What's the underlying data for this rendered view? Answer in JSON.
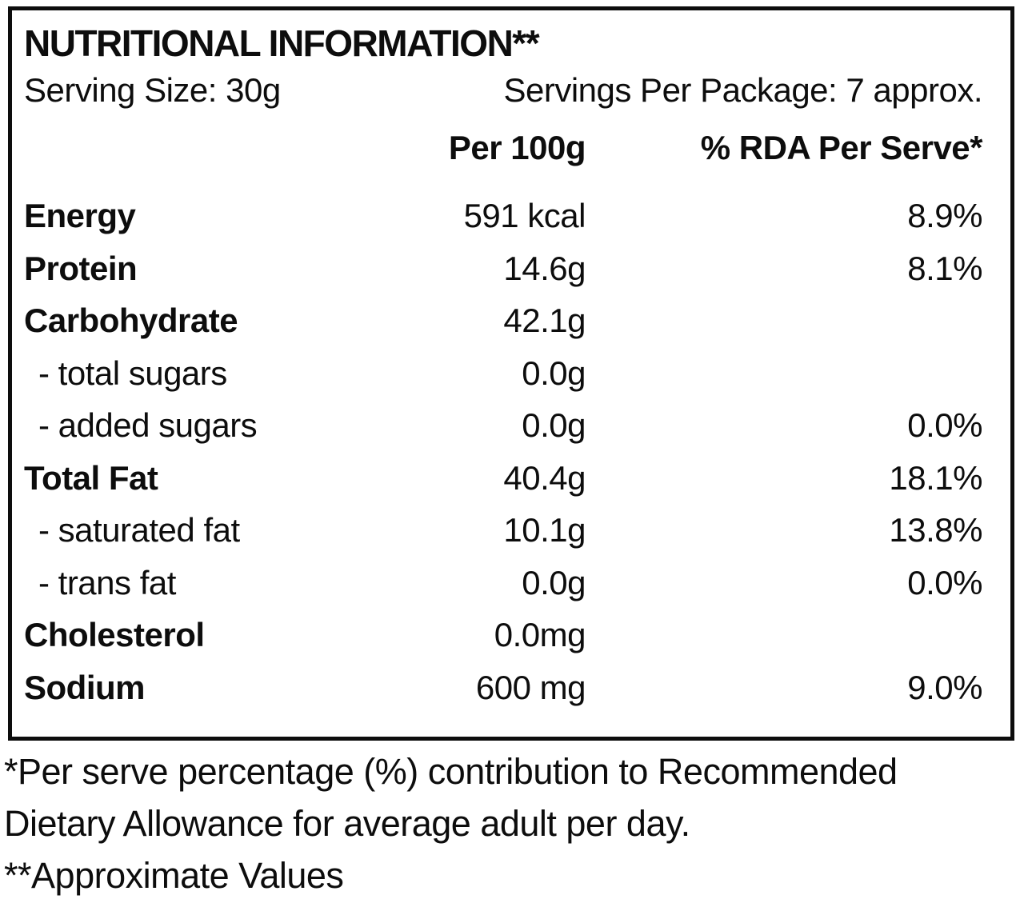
{
  "table": {
    "title": "NUTRITIONAL INFORMATION**",
    "serving_size": "Serving Size: 30g",
    "servings_per_package": "Servings Per Package: 7 approx.",
    "columns": {
      "per_100g": "Per 100g",
      "rda_per_serve": "% RDA Per Serve*"
    },
    "rows": [
      {
        "label": "Energy",
        "per_100g": "591 kcal",
        "rda": "8.9%"
      },
      {
        "label": "Protein",
        "per_100g": "14.6g",
        "rda": "8.1%"
      },
      {
        "label": "Carbohydrate",
        "per_100g": "42.1g",
        "rda": ""
      },
      {
        "label": "- total sugars",
        "per_100g": "0.0g",
        "rda": ""
      },
      {
        "label": "- added sugars",
        "per_100g": "0.0g",
        "rda": "0.0%"
      },
      {
        "label": "Total Fat",
        "per_100g": "40.4g",
        "rda": "18.1%"
      },
      {
        "label": "- saturated fat",
        "per_100g": "10.1g",
        "rda": "13.8%"
      },
      {
        "label": "- trans fat",
        "per_100g": "0.0g",
        "rda": "0.0%"
      },
      {
        "label": "Cholesterol",
        "per_100g": "0.0mg",
        "rda": ""
      },
      {
        "label": "Sodium",
        "per_100g": "600 mg",
        "rda": "9.0%"
      }
    ]
  },
  "footnotes": {
    "rda_note": "*Per serve percentage (%) contribution to Recommended Dietary Allowance for average adult per day.",
    "approx_note": "**Approximate Values"
  },
  "colors": {
    "text": "#0d0d0d",
    "border": "#0d0d0d",
    "background": "#ffffff"
  }
}
